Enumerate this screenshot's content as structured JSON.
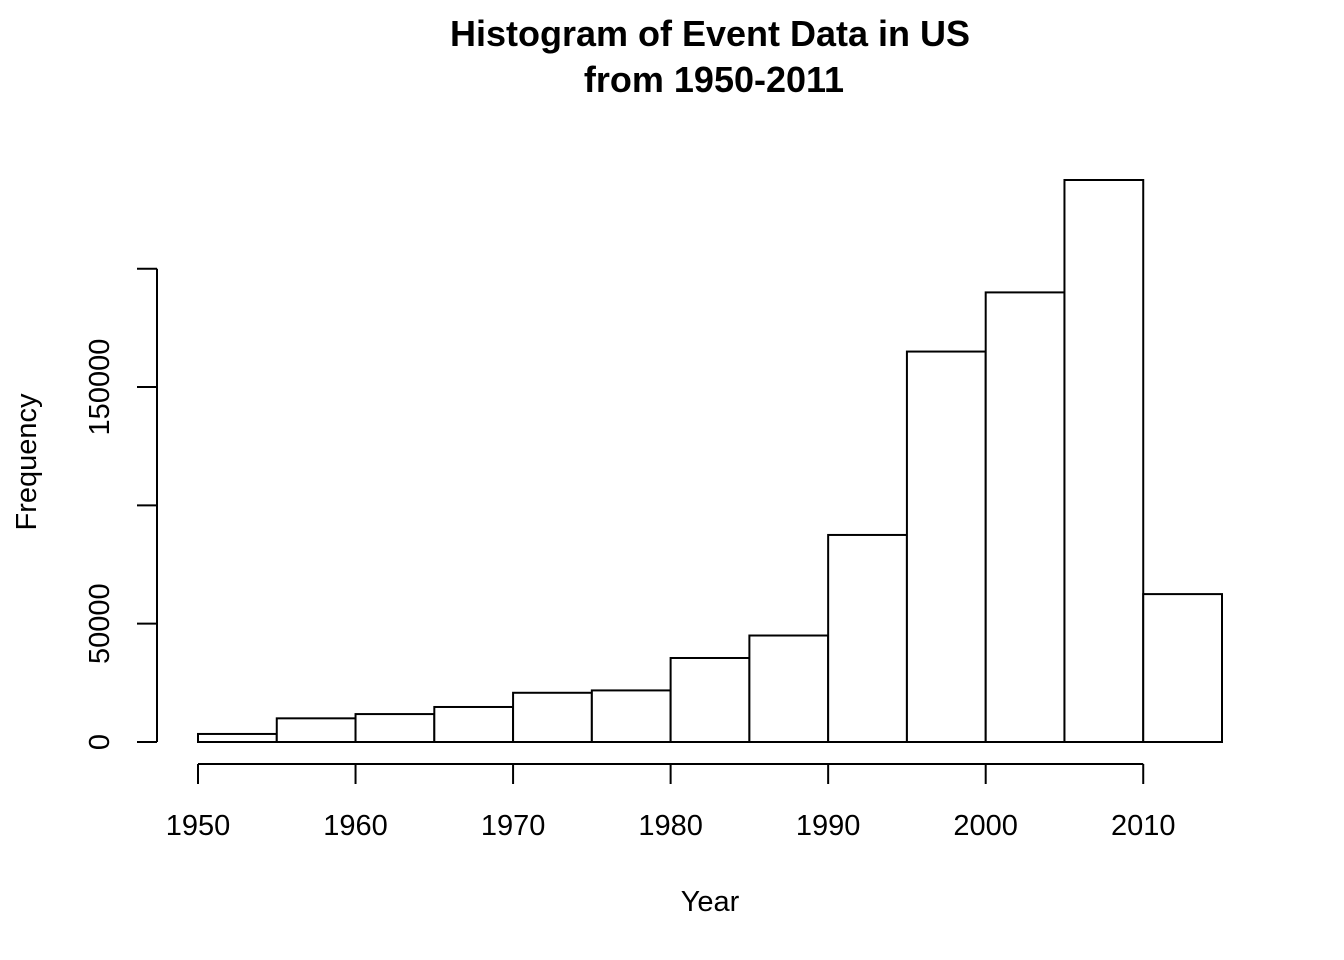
{
  "chart_data": {
    "type": "bar",
    "title_lines": [
      "Histogram of Event Data in US",
      "from 1950-2011"
    ],
    "xlabel": "Year",
    "ylabel": "Frequency",
    "bins": [
      {
        "start": 1950,
        "end": 1955,
        "value": 3400
      },
      {
        "start": 1955,
        "end": 1960,
        "value": 10000
      },
      {
        "start": 1960,
        "end": 1965,
        "value": 11800
      },
      {
        "start": 1965,
        "end": 1970,
        "value": 14800
      },
      {
        "start": 1970,
        "end": 1975,
        "value": 20800
      },
      {
        "start": 1975,
        "end": 1980,
        "value": 21800
      },
      {
        "start": 1980,
        "end": 1985,
        "value": 35500
      },
      {
        "start": 1985,
        "end": 1990,
        "value": 45000
      },
      {
        "start": 1990,
        "end": 1995,
        "value": 87500
      },
      {
        "start": 1995,
        "end": 2000,
        "value": 165000
      },
      {
        "start": 2000,
        "end": 2005,
        "value": 190000
      },
      {
        "start": 2005,
        "end": 2010,
        "value": 237500
      },
      {
        "start": 2010,
        "end": 2015,
        "value": 62500
      }
    ],
    "x_ticks": [
      1950,
      1960,
      1970,
      1980,
      1990,
      2000,
      2010
    ],
    "x_tick_labels": [
      "1950",
      "1960",
      "1970",
      "1980",
      "1990",
      "2000",
      "2010"
    ],
    "y_ticks": [
      0,
      50000,
      100000,
      150000,
      200000
    ],
    "y_tick_labels": [
      "0",
      "50000",
      "",
      "150000",
      ""
    ],
    "xlim": [
      1950,
      2015
    ],
    "ylim": [
      0,
      237500
    ],
    "grid": false,
    "colors": {
      "bar_fill": "#ffffff",
      "bar_stroke": "#000000"
    }
  }
}
